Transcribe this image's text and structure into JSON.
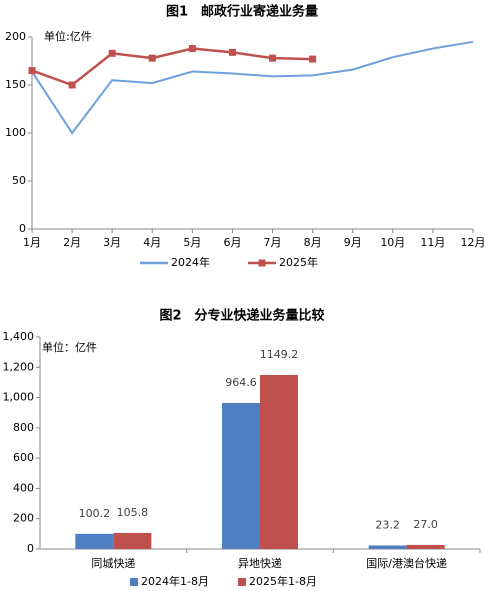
{
  "chart_data": [
    {
      "type": "line",
      "title": "图1　邮政行业寄递业务量",
      "annotation": "单位:亿件",
      "categories": [
        "1月",
        "2月",
        "3月",
        "4月",
        "5月",
        "6月",
        "7月",
        "8月",
        "9月",
        "10月",
        "11月",
        "12月"
      ],
      "series": [
        {
          "name": "2024年",
          "color": "#6fa0dc",
          "values": [
            164,
            100,
            155,
            152,
            164,
            162,
            159,
            160,
            166,
            179,
            188,
            195
          ]
        },
        {
          "name": "2025年",
          "color": "#c0504d",
          "values": [
            165,
            150,
            183,
            178,
            188,
            184,
            178,
            177,
            null,
            null,
            null,
            null
          ]
        }
      ],
      "ylim": [
        0,
        200
      ],
      "yticks": [
        0,
        50,
        100,
        150,
        200
      ]
    },
    {
      "type": "bar",
      "title": "图2　分专业快递业务量比较",
      "annotation": "单位：亿件",
      "categories": [
        "同城快递",
        "异地快递",
        "国际/港澳台快递"
      ],
      "series": [
        {
          "name": "2024年1-8月",
          "color": "#4f7fc0",
          "values": [
            100.2,
            964.6,
            23.2
          ],
          "value_labels": [
            "100.2",
            "964.6",
            "23.2"
          ]
        },
        {
          "name": "2025年1-8月",
          "color": "#c0504d",
          "values": [
            105.8,
            1149.2,
            27.0
          ],
          "value_labels": [
            "105.8",
            "1149.2",
            "27.0"
          ]
        }
      ],
      "ylim": [
        0,
        1400
      ],
      "yticks": [
        0,
        200,
        400,
        600,
        800,
        {
          "value": 1000,
          "label": "1,000"
        },
        {
          "value": 1200,
          "label": "1,200"
        },
        {
          "value": 1400,
          "label": "1,400"
        }
      ]
    }
  ]
}
